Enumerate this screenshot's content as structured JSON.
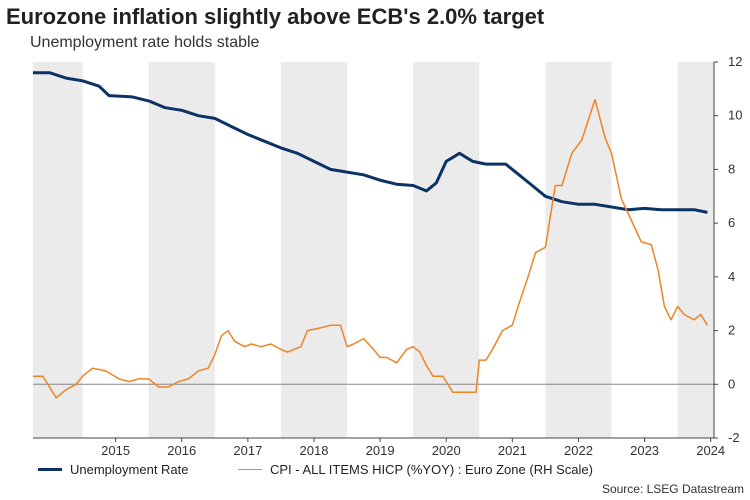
{
  "header": {
    "title": "Eurozone inflation slightly above ECB's 2.0% target",
    "subtitle": "Unemployment rate holds stable"
  },
  "source": "Source: LSEG Datastream",
  "colors": {
    "unemployment": "#0b3366",
    "cpi": "#ef8426",
    "band": "#ebebeb",
    "zero": "#888888"
  },
  "chart_data": {
    "type": "line",
    "x_range": [
      2014.25,
      2024.55
    ],
    "y_right_range": [
      -2,
      12
    ],
    "y_ticks": [
      "-2",
      "0",
      "2",
      "4",
      "6",
      "8",
      "10",
      "12"
    ],
    "x_ticks": [
      "2015",
      "2016",
      "2017",
      "2018",
      "2019",
      "2020",
      "2021",
      "2022",
      "2023",
      "2024"
    ],
    "series": [
      {
        "name": "Unemployment Rate",
        "axis": "right",
        "points": [
          [
            2014.25,
            11.6
          ],
          [
            2014.5,
            11.6
          ],
          [
            2014.75,
            11.4
          ],
          [
            2015.0,
            11.3
          ],
          [
            2015.25,
            11.1
          ],
          [
            2015.4,
            10.75
          ],
          [
            2015.75,
            10.7
          ],
          [
            2016.0,
            10.55
          ],
          [
            2016.25,
            10.3
          ],
          [
            2016.5,
            10.2
          ],
          [
            2016.75,
            10.0
          ],
          [
            2017.0,
            9.9
          ],
          [
            2017.25,
            9.6
          ],
          [
            2017.5,
            9.3
          ],
          [
            2017.75,
            9.05
          ],
          [
            2018.0,
            8.8
          ],
          [
            2018.25,
            8.6
          ],
          [
            2018.5,
            8.3
          ],
          [
            2018.75,
            8.0
          ],
          [
            2019.0,
            7.9
          ],
          [
            2019.25,
            7.8
          ],
          [
            2019.5,
            7.6
          ],
          [
            2019.75,
            7.45
          ],
          [
            2020.0,
            7.4
          ],
          [
            2020.2,
            7.2
          ],
          [
            2020.35,
            7.5
          ],
          [
            2020.5,
            8.3
          ],
          [
            2020.7,
            8.6
          ],
          [
            2020.9,
            8.3
          ],
          [
            2021.1,
            8.2
          ],
          [
            2021.4,
            8.2
          ],
          [
            2021.6,
            7.8
          ],
          [
            2021.8,
            7.4
          ],
          [
            2022.0,
            7.0
          ],
          [
            2022.25,
            6.8
          ],
          [
            2022.5,
            6.7
          ],
          [
            2022.75,
            6.7
          ],
          [
            2023.0,
            6.6
          ],
          [
            2023.25,
            6.5
          ],
          [
            2023.5,
            6.55
          ],
          [
            2023.75,
            6.5
          ],
          [
            2024.0,
            6.5
          ],
          [
            2024.25,
            6.5
          ],
          [
            2024.45,
            6.4
          ]
        ]
      },
      {
        "name": "CPI - ALL ITEMS HICP (%YOY) : Euro Zone (RH Scale)",
        "axis": "right",
        "points": [
          [
            2014.25,
            0.3
          ],
          [
            2014.4,
            0.3
          ],
          [
            2014.5,
            -0.1
          ],
          [
            2014.6,
            -0.5
          ],
          [
            2014.75,
            -0.2
          ],
          [
            2014.9,
            0.0
          ],
          [
            2015.0,
            0.3
          ],
          [
            2015.15,
            0.6
          ],
          [
            2015.35,
            0.5
          ],
          [
            2015.55,
            0.2
          ],
          [
            2015.7,
            0.1
          ],
          [
            2015.85,
            0.2
          ],
          [
            2016.0,
            0.2
          ],
          [
            2016.15,
            -0.1
          ],
          [
            2016.3,
            -0.1
          ],
          [
            2016.45,
            0.1
          ],
          [
            2016.6,
            0.2
          ],
          [
            2016.75,
            0.5
          ],
          [
            2016.9,
            0.6
          ],
          [
            2017.0,
            1.1
          ],
          [
            2017.1,
            1.8
          ],
          [
            2017.2,
            2.0
          ],
          [
            2017.3,
            1.6
          ],
          [
            2017.45,
            1.4
          ],
          [
            2017.55,
            1.5
          ],
          [
            2017.7,
            1.4
          ],
          [
            2017.85,
            1.5
          ],
          [
            2018.0,
            1.3
          ],
          [
            2018.1,
            1.2
          ],
          [
            2018.3,
            1.4
          ],
          [
            2018.4,
            2.0
          ],
          [
            2018.6,
            2.1
          ],
          [
            2018.75,
            2.2
          ],
          [
            2018.9,
            2.2
          ],
          [
            2019.0,
            1.4
          ],
          [
            2019.1,
            1.5
          ],
          [
            2019.25,
            1.7
          ],
          [
            2019.4,
            1.3
          ],
          [
            2019.5,
            1.0
          ],
          [
            2019.6,
            1.0
          ],
          [
            2019.75,
            0.8
          ],
          [
            2019.9,
            1.3
          ],
          [
            2020.0,
            1.4
          ],
          [
            2020.1,
            1.2
          ],
          [
            2020.2,
            0.7
          ],
          [
            2020.3,
            0.3
          ],
          [
            2020.45,
            0.3
          ],
          [
            2020.6,
            -0.3
          ],
          [
            2020.75,
            -0.3
          ],
          [
            2020.95,
            -0.3
          ],
          [
            2021.0,
            0.9
          ],
          [
            2021.1,
            0.9
          ],
          [
            2021.2,
            1.3
          ],
          [
            2021.35,
            2.0
          ],
          [
            2021.5,
            2.2
          ],
          [
            2021.6,
            3.0
          ],
          [
            2021.75,
            4.1
          ],
          [
            2021.85,
            4.9
          ],
          [
            2022.0,
            5.1
          ],
          [
            2022.15,
            7.4
          ],
          [
            2022.25,
            7.4
          ],
          [
            2022.4,
            8.6
          ],
          [
            2022.55,
            9.1
          ],
          [
            2022.75,
            10.6
          ],
          [
            2022.9,
            9.2
          ],
          [
            2023.0,
            8.6
          ],
          [
            2023.15,
            6.9
          ],
          [
            2023.3,
            6.1
          ],
          [
            2023.45,
            5.3
          ],
          [
            2023.6,
            5.2
          ],
          [
            2023.7,
            4.3
          ],
          [
            2023.8,
            2.9
          ],
          [
            2023.9,
            2.4
          ],
          [
            2024.0,
            2.9
          ],
          [
            2024.1,
            2.6
          ],
          [
            2024.25,
            2.4
          ],
          [
            2024.35,
            2.6
          ],
          [
            2024.45,
            2.2
          ]
        ]
      }
    ]
  }
}
